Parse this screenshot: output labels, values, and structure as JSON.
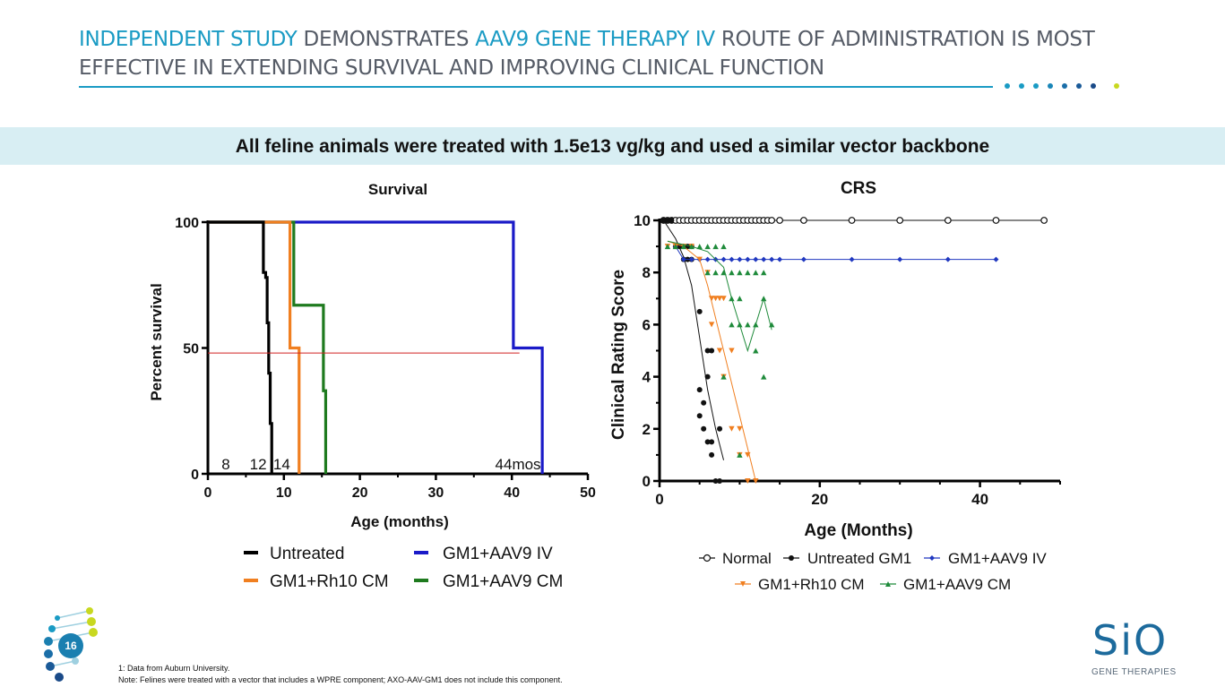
{
  "header": {
    "title_part1": "INDEPENDENT STUDY",
    "title_part2": " DEMONSTRATES ",
    "title_part3": "AAV9 GENE THERAPY IV",
    "title_part4": " ROUTE OF ADMINISTRATION IS MOST EFFECTIVE IN EXTENDING SURVIVAL AND IMPROVING CLINICAL FUNCTION",
    "accent_color": "#1a9bc4"
  },
  "banner": {
    "text": "All feline animals were treated with 1.5e13 vg/kg and used a similar vector backbone"
  },
  "chart_data": [
    {
      "type": "line",
      "title": "Survival",
      "xlabel": "Age (months)",
      "ylabel": "Percent survival",
      "xlim": [
        0,
        50
      ],
      "ylim": [
        0,
        100
      ],
      "xticks": [
        "0",
        "10",
        "20",
        "30",
        "40",
        "50"
      ],
      "yticks": [
        "0",
        "50",
        "100"
      ],
      "reference_line_y": 48,
      "annotations": [
        "8",
        "12",
        "14",
        "44mos"
      ],
      "legend_placement": "bottom",
      "series": [
        {
          "name": "Untreated",
          "color": "#000000",
          "x": [
            0,
            7.3,
            7.3,
            7.6,
            7.6,
            7.8,
            7.8,
            8.0,
            8.0,
            8.2,
            8.2,
            8.4,
            8.4
          ],
          "y": [
            100,
            100,
            80,
            80,
            78,
            78,
            60,
            60,
            40,
            40,
            20,
            20,
            0
          ]
        },
        {
          "name": "GM1+Rh10 CM",
          "color": "#f07f20",
          "x": [
            0,
            10.8,
            10.8,
            11.5,
            11.5,
            12,
            12
          ],
          "y": [
            100,
            100,
            50,
            50,
            50,
            50,
            0
          ]
        },
        {
          "name": "GM1+AAV9 CM",
          "color": "#1e7a1e",
          "x": [
            0,
            11.3,
            11.3,
            15.2,
            15.2,
            15.5,
            15.5
          ],
          "y": [
            100,
            100,
            67,
            67,
            33,
            33,
            0
          ]
        },
        {
          "name": "GM1+AAV9 IV",
          "color": "#1a1ac8",
          "x": [
            0,
            40.2,
            40.2,
            44,
            44
          ],
          "y": [
            100,
            100,
            50,
            50,
            0
          ]
        }
      ]
    },
    {
      "type": "line",
      "title": "CRS",
      "xlabel": "Age (Months)",
      "ylabel": "Clinical Rating Score",
      "xlim": [
        0,
        50
      ],
      "ylim": [
        0,
        10
      ],
      "xticks": [
        "0",
        "20",
        "40"
      ],
      "yticks": [
        "0",
        "2",
        "4",
        "6",
        "8",
        "10"
      ],
      "legend_placement": "bottom",
      "series": [
        {
          "name": "Normal",
          "color": "#111111",
          "marker": "open-circle",
          "x": [
            0.5,
            1,
            1.5,
            2,
            2.5,
            3,
            3.5,
            4,
            4.5,
            5,
            5.5,
            6,
            6.5,
            7,
            7.5,
            8,
            8.5,
            9,
            9.5,
            10,
            10.5,
            11,
            11.5,
            12,
            12.5,
            13,
            13.5,
            14,
            15,
            18,
            24,
            30,
            36,
            42,
            48
          ],
          "y": [
            10,
            10,
            10,
            10,
            10,
            10,
            10,
            10,
            10,
            10,
            10,
            10,
            10,
            10,
            10,
            10,
            10,
            10,
            10,
            10,
            10,
            10,
            10,
            10,
            10,
            10,
            10,
            10,
            10,
            10,
            10,
            10,
            10,
            10,
            10
          ]
        },
        {
          "name": "Untreated GM1",
          "color": "#111111",
          "marker": "filled-circle",
          "points": [
            [
              0.5,
              10
            ],
            [
              1,
              10
            ],
            [
              1.5,
              10
            ],
            [
              2,
              9
            ],
            [
              2.5,
              9
            ],
            [
              3,
              9
            ],
            [
              3.5,
              9
            ],
            [
              4,
              9
            ],
            [
              3,
              8.5
            ],
            [
              3.5,
              8.5
            ],
            [
              4,
              8.5
            ],
            [
              5,
              6.5
            ],
            [
              6,
              5
            ],
            [
              6.5,
              5
            ],
            [
              5,
              3.5
            ],
            [
              5.5,
              3
            ],
            [
              6,
              4
            ],
            [
              5,
              2.5
            ],
            [
              5.5,
              2
            ],
            [
              6,
              1.5
            ],
            [
              6.5,
              1.5
            ],
            [
              7.5,
              2
            ],
            [
              6.5,
              1
            ],
            [
              7,
              0
            ],
            [
              7.5,
              0
            ]
          ],
          "trend_x": [
            0.5,
            2,
            3,
            4,
            5,
            6,
            7,
            8
          ],
          "trend_y": [
            10,
            9.3,
            8.6,
            7.5,
            5.5,
            3.5,
            2,
            0.8
          ]
        },
        {
          "name": "GM1+AAV9 IV",
          "color": "#2038c0",
          "marker": "diamond",
          "x": [
            2,
            3,
            4,
            5,
            6,
            7,
            8,
            9,
            10,
            11,
            12,
            13,
            14,
            15,
            18,
            24,
            30,
            36,
            42
          ],
          "y": [
            9,
            8.5,
            8.5,
            8.5,
            8.5,
            8.5,
            8.5,
            8.5,
            8.5,
            8.5,
            8.5,
            8.5,
            8.5,
            8.5,
            8.5,
            8.5,
            8.5,
            8.5,
            8.5
          ]
        },
        {
          "name": "GM1+Rh10 CM",
          "color": "#f07f20",
          "marker": "triangle-down",
          "points": [
            [
              1,
              9
            ],
            [
              2,
              9
            ],
            [
              3,
              9
            ],
            [
              4,
              9
            ],
            [
              5,
              8.5
            ],
            [
              6,
              8
            ],
            [
              6.5,
              7
            ],
            [
              7,
              7
            ],
            [
              7.5,
              7
            ],
            [
              8,
              7
            ],
            [
              6.5,
              6
            ],
            [
              7.5,
              5
            ],
            [
              9,
              5
            ],
            [
              8,
              4
            ],
            [
              9,
              2
            ],
            [
              10,
              2
            ],
            [
              10,
              1
            ],
            [
              11,
              1
            ],
            [
              11,
              0
            ],
            [
              12,
              0
            ]
          ],
          "trend_x": [
            1,
            3,
            5,
            6,
            8,
            10,
            12
          ],
          "trend_y": [
            9.2,
            9,
            8.5,
            7.5,
            5,
            2.5,
            0
          ]
        },
        {
          "name": "GM1+AAV9 CM",
          "color": "#1e8a3a",
          "marker": "triangle-up",
          "points": [
            [
              1,
              9
            ],
            [
              2,
              9
            ],
            [
              3,
              9
            ],
            [
              4,
              9
            ],
            [
              5,
              9
            ],
            [
              6,
              9
            ],
            [
              7,
              9
            ],
            [
              8,
              9
            ],
            [
              6,
              8
            ],
            [
              7,
              8
            ],
            [
              8,
              8
            ],
            [
              9,
              8
            ],
            [
              10,
              8
            ],
            [
              11,
              8
            ],
            [
              12,
              8
            ],
            [
              13,
              8
            ],
            [
              9,
              7
            ],
            [
              10,
              7
            ],
            [
              9,
              6
            ],
            [
              10,
              6
            ],
            [
              11,
              6
            ],
            [
              12,
              6
            ],
            [
              13,
              7
            ],
            [
              14,
              6
            ],
            [
              8,
              4
            ],
            [
              10,
              1
            ],
            [
              12,
              5
            ],
            [
              13,
              4
            ]
          ],
          "trend_x": [
            1,
            4,
            6,
            8,
            9,
            10,
            11,
            12,
            13,
            14
          ],
          "trend_y": [
            9.2,
            9,
            8.8,
            8.2,
            7,
            6,
            5,
            6,
            7,
            5.8
          ]
        }
      ]
    }
  ],
  "footnotes": {
    "line1": "1: Data from Auburn University.",
    "line2": "Note: Felines were treated with a vector that includes a WPRE component; AXO-AAV-GM1 does not include this component."
  },
  "page_number": "16",
  "logo": {
    "text": "SiO",
    "subtitle": "GENE THERAPIES"
  }
}
